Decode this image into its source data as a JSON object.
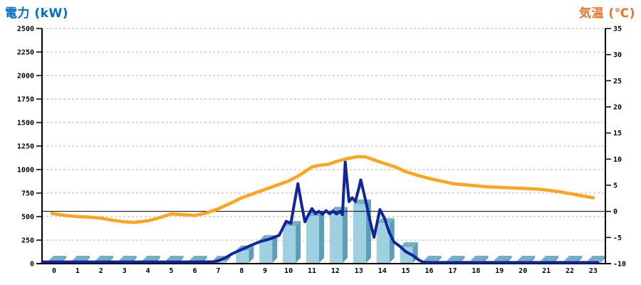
{
  "titles": {
    "left": "電力 (kW)",
    "left_color": "#0070C0",
    "right": "気温 (℃)",
    "right_color": "#E8732A"
  },
  "chart_data": {
    "type": "combo_bar_line_dual_axis",
    "title": "",
    "x_categories": [
      "0",
      "1",
      "2",
      "3",
      "4",
      "5",
      "6",
      "7",
      "8",
      "9",
      "10",
      "11",
      "12",
      "13",
      "14",
      "15",
      "16",
      "17",
      "18",
      "19",
      "20",
      "21",
      "22",
      "23"
    ],
    "left_axis": {
      "label": "電力 (kW)",
      "min": 0,
      "max": 2500,
      "tick_step": 250,
      "tick_labels": [
        "0",
        "250",
        "500",
        "750",
        "1000",
        "1250",
        "1500",
        "1750",
        "2000",
        "2250",
        "2500"
      ]
    },
    "right_axis": {
      "label": "気温 (℃)",
      "min": -10,
      "max": 35,
      "tick_step": 5,
      "tick_labels": [
        "-10",
        "-5",
        "0",
        "5",
        "10",
        "15",
        "20",
        "25",
        "30",
        "35"
      ],
      "zero_line": true
    },
    "grid": {
      "on": true,
      "color": "#B4B4B4",
      "dash": "3,3"
    },
    "legend": "none",
    "series": [
      {
        "id": "power-bars",
        "type": "bar",
        "axis": "left",
        "color_front": "#9FD0E0",
        "color_side": "#5C9DB9",
        "color_top": "#74AFC6",
        "values": [
          30,
          30,
          30,
          30,
          30,
          30,
          30,
          30,
          140,
          250,
          400,
          505,
          550,
          630,
          430,
          175,
          30,
          30,
          30,
          30,
          30,
          30,
          30,
          30
        ]
      },
      {
        "id": "power-line",
        "type": "line",
        "axis": "left",
        "color": "#10259A",
        "stroke_width": 4,
        "points": [
          [
            -0.5,
            18
          ],
          [
            0,
            18
          ],
          [
            1,
            18
          ],
          [
            2,
            18
          ],
          [
            3,
            18
          ],
          [
            4,
            18
          ],
          [
            5,
            18
          ],
          [
            6,
            18
          ],
          [
            6.8,
            20
          ],
          [
            7,
            30
          ],
          [
            7.3,
            60
          ],
          [
            7.6,
            105
          ],
          [
            8,
            150
          ],
          [
            8.4,
            195
          ],
          [
            8.8,
            235
          ],
          [
            9.2,
            262
          ],
          [
            9.6,
            300
          ],
          [
            9.9,
            450
          ],
          [
            10.1,
            428
          ],
          [
            10.25,
            640
          ],
          [
            10.4,
            850
          ],
          [
            10.55,
            640
          ],
          [
            10.7,
            445
          ],
          [
            10.85,
            520
          ],
          [
            11,
            585
          ],
          [
            11.15,
            532
          ],
          [
            11.3,
            556
          ],
          [
            11.45,
            524
          ],
          [
            11.6,
            564
          ],
          [
            11.75,
            530
          ],
          [
            11.9,
            558
          ],
          [
            12.05,
            528
          ],
          [
            12.2,
            556
          ],
          [
            12.3,
            520
          ],
          [
            12.42,
            1080
          ],
          [
            12.58,
            660
          ],
          [
            12.72,
            700
          ],
          [
            12.85,
            660
          ],
          [
            13,
            800
          ],
          [
            13.08,
            890
          ],
          [
            13.3,
            660
          ],
          [
            13.5,
            430
          ],
          [
            13.65,
            280
          ],
          [
            13.9,
            575
          ],
          [
            14.1,
            480
          ],
          [
            14.3,
            330
          ],
          [
            14.5,
            230
          ],
          [
            14.75,
            185
          ],
          [
            15,
            128
          ],
          [
            15.3,
            88
          ],
          [
            15.55,
            40
          ],
          [
            15.75,
            15
          ],
          [
            16,
            12
          ],
          [
            17,
            12
          ],
          [
            18,
            12
          ],
          [
            19,
            12
          ],
          [
            20,
            12
          ],
          [
            21,
            12
          ],
          [
            22,
            12
          ],
          [
            23.2,
            12
          ]
        ]
      },
      {
        "id": "temperature-line",
        "type": "line",
        "axis": "right",
        "color": "#FFA41E",
        "stroke_width": 4.5,
        "points": [
          [
            -0.1,
            -0.4
          ],
          [
            0.5,
            -0.8
          ],
          [
            1,
            -1.0
          ],
          [
            1.5,
            -1.1
          ],
          [
            2,
            -1.3
          ],
          [
            2.5,
            -1.7
          ],
          [
            3,
            -2.0
          ],
          [
            3.4,
            -2.1
          ],
          [
            4,
            -1.8
          ],
          [
            4.5,
            -1.2
          ],
          [
            5,
            -0.5
          ],
          [
            5.5,
            -0.6
          ],
          [
            6,
            -0.8
          ],
          [
            6.5,
            -0.3
          ],
          [
            7,
            0.5
          ],
          [
            7.5,
            1.5
          ],
          [
            8,
            2.6
          ],
          [
            8.5,
            3.4
          ],
          [
            9,
            4.2
          ],
          [
            9.5,
            5.0
          ],
          [
            10,
            5.8
          ],
          [
            10.5,
            7.0
          ],
          [
            11,
            8.5
          ],
          [
            11.3,
            8.8
          ],
          [
            11.7,
            9.0
          ],
          [
            12,
            9.5
          ],
          [
            12.5,
            10.1
          ],
          [
            13,
            10.5
          ],
          [
            13.3,
            10.4
          ],
          [
            14,
            9.3
          ],
          [
            14.5,
            8.6
          ],
          [
            15,
            7.6
          ],
          [
            15.5,
            6.9
          ],
          [
            16,
            6.3
          ],
          [
            16.5,
            5.8
          ],
          [
            17,
            5.3
          ],
          [
            17.5,
            5.1
          ],
          [
            18,
            4.9
          ],
          [
            18.5,
            4.7
          ],
          [
            19,
            4.6
          ],
          [
            19.5,
            4.5
          ],
          [
            20,
            4.4
          ],
          [
            20.5,
            4.3
          ],
          [
            21,
            4.1
          ],
          [
            21.5,
            3.8
          ],
          [
            22,
            3.4
          ],
          [
            22.5,
            3.0
          ],
          [
            23,
            2.6
          ]
        ]
      }
    ]
  }
}
